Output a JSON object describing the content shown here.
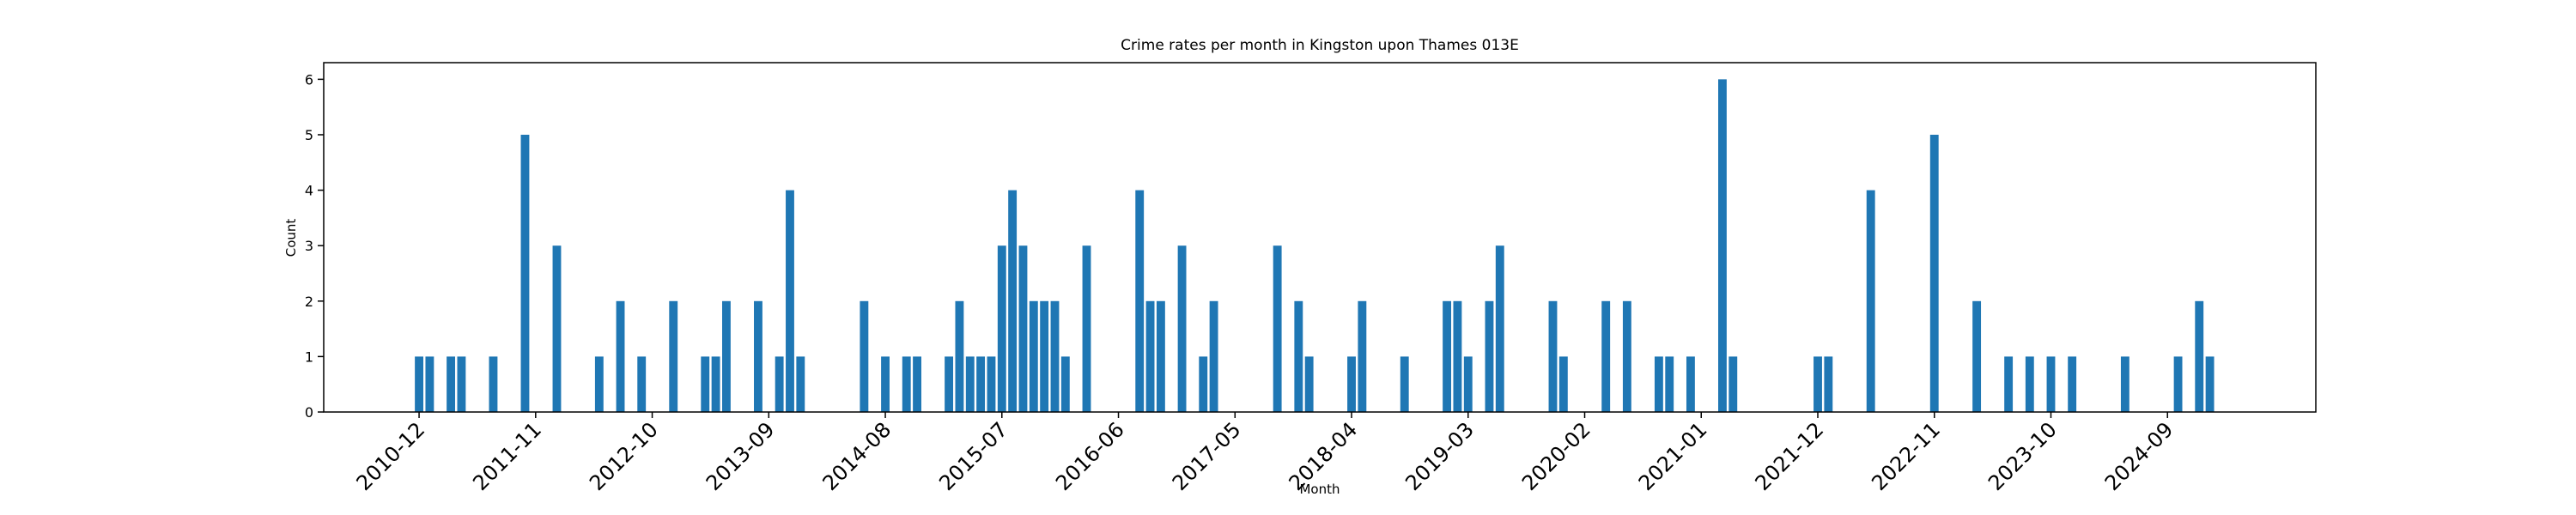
{
  "chart_data": {
    "type": "bar",
    "title": "Crime rates per month in Kingston upon Thames 013E",
    "x_label": "Month",
    "y_label": "Count",
    "color": "#1f77b4",
    "x": [
      "2010-12",
      "2011-01",
      "2011-03",
      "2011-04",
      "2011-07",
      "2011-10",
      "2012-01",
      "2012-05",
      "2012-07",
      "2012-09",
      "2012-12",
      "2013-03",
      "2013-04",
      "2013-05",
      "2013-08",
      "2013-10",
      "2013-11",
      "2013-12",
      "2014-06",
      "2014-08",
      "2014-10",
      "2014-11",
      "2015-02",
      "2015-03",
      "2015-04",
      "2015-05",
      "2015-06",
      "2015-07",
      "2015-08",
      "2015-09",
      "2015-10",
      "2015-11",
      "2015-12",
      "2016-01",
      "2016-03",
      "2016-08",
      "2016-09",
      "2016-10",
      "2016-12",
      "2017-02",
      "2017-03",
      "2017-09",
      "2017-11",
      "2017-12",
      "2018-04",
      "2018-05",
      "2018-09",
      "2019-01",
      "2019-02",
      "2019-03",
      "2019-05",
      "2019-06",
      "2019-11",
      "2019-12",
      "2020-04",
      "2020-06",
      "2020-09",
      "2020-10",
      "2020-12",
      "2021-03",
      "2021-04",
      "2021-12",
      "2022-01",
      "2022-05",
      "2022-11",
      "2023-03",
      "2023-06",
      "2023-08",
      "2023-10",
      "2023-12",
      "2024-05",
      "2024-10",
      "2024-12",
      "2025-01"
    ],
    "values": [
      1,
      1,
      1,
      1,
      1,
      5,
      3,
      1,
      2,
      1,
      2,
      1,
      1,
      2,
      2,
      1,
      4,
      1,
      2,
      1,
      1,
      1,
      1,
      2,
      1,
      1,
      1,
      3,
      4,
      3,
      2,
      2,
      2,
      1,
      3,
      4,
      2,
      2,
      3,
      1,
      2,
      3,
      2,
      1,
      1,
      2,
      1,
      2,
      2,
      1,
      2,
      3,
      2,
      1,
      2,
      2,
      1,
      1,
      1,
      6,
      1,
      1,
      1,
      4,
      5,
      2,
      1,
      1,
      1,
      1,
      1,
      1,
      2,
      1
    ],
    "xlim": [
      "2010-03",
      "2025-11"
    ],
    "xticks": [
      "2010-12",
      "2011-11",
      "2012-10",
      "2013-09",
      "2014-08",
      "2015-07",
      "2016-06",
      "2017-05",
      "2018-04",
      "2019-03",
      "2020-02",
      "2021-01",
      "2021-12",
      "2022-11",
      "2023-10",
      "2024-09"
    ],
    "ylim": [
      0,
      6.3
    ],
    "yticks": [
      0,
      1,
      2,
      3,
      4,
      5,
      6
    ]
  }
}
